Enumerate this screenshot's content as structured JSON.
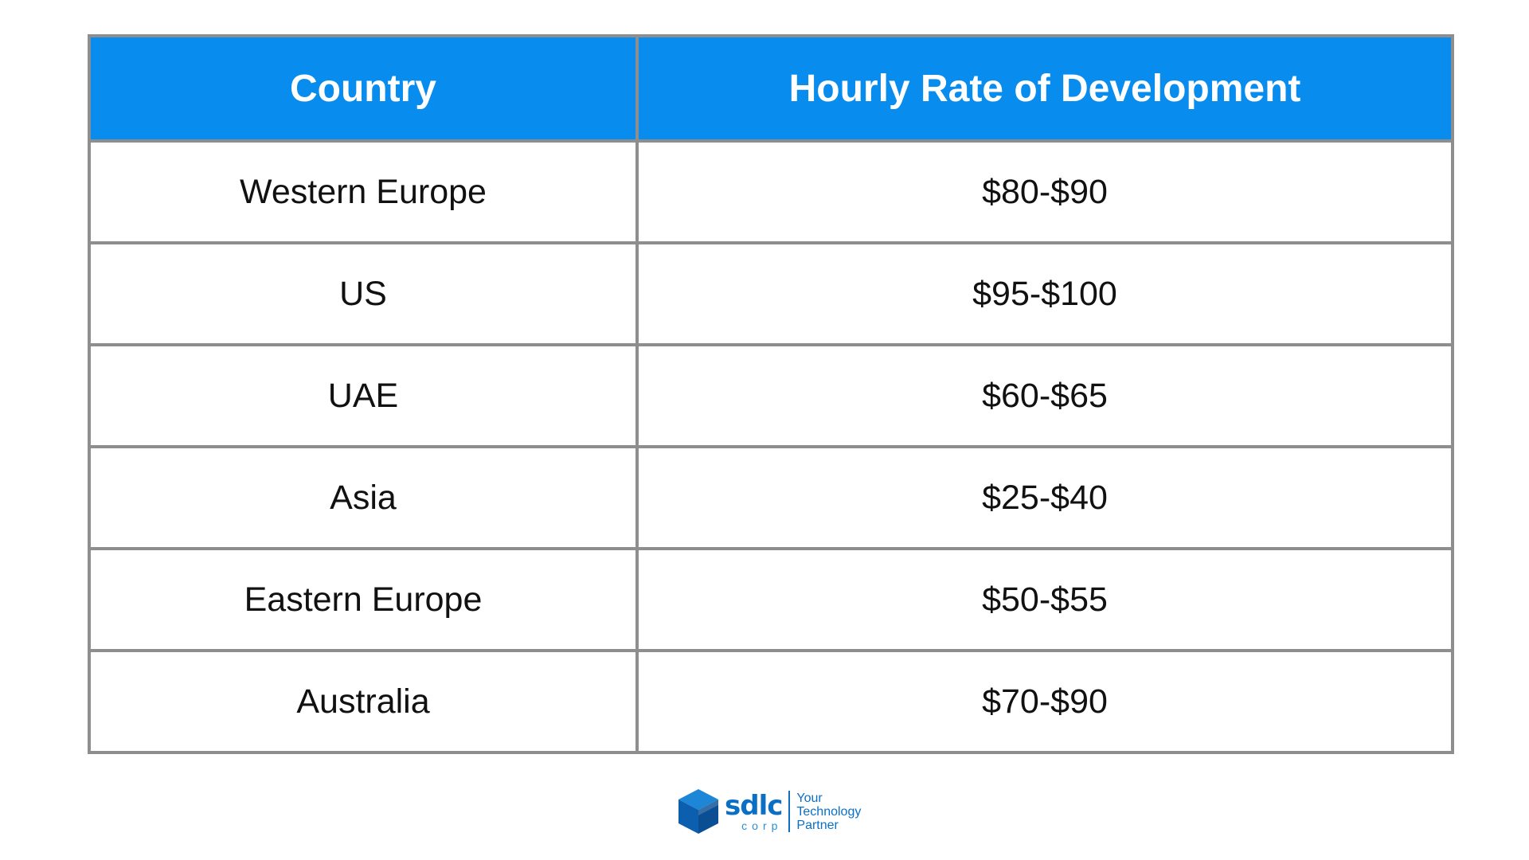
{
  "table": {
    "headers": [
      "Country",
      "Hourly Rate of Development"
    ],
    "rows": [
      {
        "country": "Western Europe",
        "rate": "$80-$90"
      },
      {
        "country": "US",
        "rate": "$95-$100"
      },
      {
        "country": "UAE",
        "rate": "$60-$65"
      },
      {
        "country": "Asia",
        "rate": "$25-$40"
      },
      {
        "country": "Eastern Europe",
        "rate": "$50-$55"
      },
      {
        "country": "Australia",
        "rate": "$70-$90"
      }
    ]
  },
  "colors": {
    "header_bg": "#088ced",
    "header_text": "#ffffff",
    "border": "#8e8e8e",
    "logo_blue": "#0b6fc6"
  },
  "logo": {
    "icon": "cube-icon",
    "brand": "sdlc",
    "sub": "corp",
    "tagline": [
      "Your",
      "Technology",
      "Partner"
    ]
  }
}
